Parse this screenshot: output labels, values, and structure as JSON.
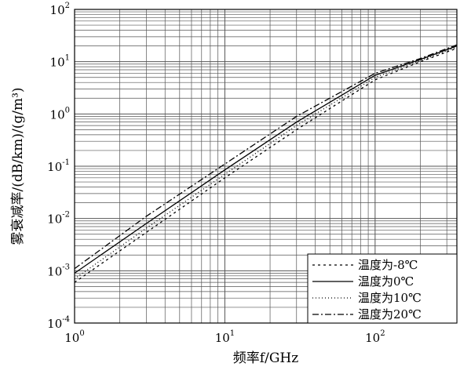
{
  "chart_data": {
    "type": "line",
    "title": "",
    "xlabel": "频率f/GHz",
    "ylabel": "雾衰减率/(dB/km)/(g/m³)",
    "x_scale": "log",
    "y_scale": "log",
    "xlim": [
      1,
      350
    ],
    "ylim": [
      0.0001,
      100
    ],
    "x_ticks": [
      {
        "base": "10",
        "exp": "0",
        "value": 1
      },
      {
        "base": "10",
        "exp": "1",
        "value": 10
      },
      {
        "base": "10",
        "exp": "2",
        "value": 100
      }
    ],
    "y_ticks": [
      {
        "base": "10",
        "exp": "2",
        "value": 100
      },
      {
        "base": "10",
        "exp": "1",
        "value": 10
      },
      {
        "base": "10",
        "exp": "0",
        "value": 1
      },
      {
        "base": "10",
        "exp": "-1",
        "value": 0.1
      },
      {
        "base": "10",
        "exp": "-2",
        "value": 0.01
      },
      {
        "base": "10",
        "exp": "-3",
        "value": 0.001
      },
      {
        "base": "10",
        "exp": "-4",
        "value": 0.0001
      }
    ],
    "grid": true,
    "legend_position": "bottom-right",
    "series": [
      {
        "name": "温度为-8℃",
        "dash": "3,4",
        "x": [
          1,
          3,
          10,
          30,
          100,
          200,
          350
        ],
        "y": [
          0.0006,
          0.0054,
          0.06,
          0.5,
          4.5,
          10,
          18
        ]
      },
      {
        "name": "温度为0℃",
        "dash": "",
        "x": [
          1,
          3,
          10,
          30,
          100,
          200,
          350
        ],
        "y": [
          0.0009,
          0.008,
          0.085,
          0.7,
          5.5,
          11,
          20
        ]
      },
      {
        "name": "温度为10℃",
        "dash": "1,3",
        "x": [
          1,
          3,
          10,
          30,
          100,
          200,
          350
        ],
        "y": [
          0.0007,
          0.0065,
          0.07,
          0.6,
          5,
          10.5,
          19
        ]
      },
      {
        "name": "温度为20℃",
        "dash": "8,3,2,3",
        "x": [
          1,
          3,
          10,
          30,
          100,
          200,
          350
        ],
        "y": [
          0.0011,
          0.011,
          0.11,
          0.9,
          6,
          11.5,
          21
        ]
      }
    ]
  }
}
